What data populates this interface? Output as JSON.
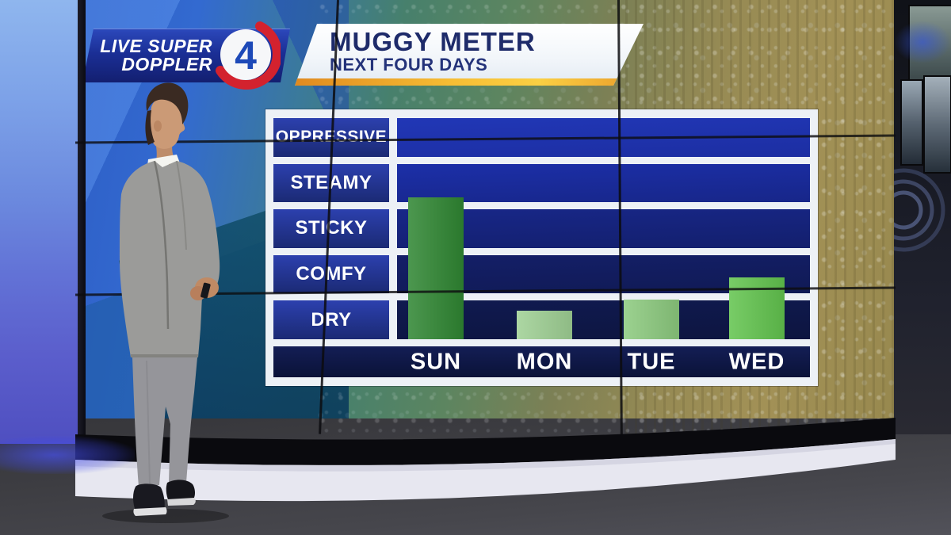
{
  "broadcast": {
    "station_banner": {
      "line1": "LIVE SUPER",
      "line2": "DOPPLER",
      "channel_number": "4"
    },
    "title_banner": {
      "title": "MUGGY METER",
      "subtitle": "NEXT FOUR DAYS"
    }
  },
  "chart_data": {
    "type": "bar",
    "title": "MUGGY METER",
    "subtitle": "NEXT FOUR DAYS",
    "categories": [
      "SUN",
      "MON",
      "TUE",
      "WED"
    ],
    "values": [
      3.2,
      0.65,
      0.9,
      1.4
    ],
    "units": "mugginess level (row units: 1=DRY, 2=COMFY, 3=STICKY, 4=STEAMY, 5=OPPRESSIVE)",
    "y_tick_labels": [
      "OPPRESSIVE",
      "STEAMY",
      "STICKY",
      "COMFY",
      "DRY"
    ],
    "ylim": [
      0,
      5
    ],
    "grid": true,
    "legend_position": "none",
    "bar_colors": [
      "#2f8632",
      "#9fd094",
      "#8cca7e",
      "#62c44e"
    ]
  },
  "scene": {
    "presenter": "weather presenter, gray suit, gold tie, facing chart",
    "setting": "TV studio video wall with condensation (muggy window) backdrop"
  },
  "colors": {
    "plot_blue_top": "#2137b6",
    "plot_blue_bottom": "#0d1540",
    "axis_strip": "#0a1238",
    "banner_navy": "#1b2f96",
    "title_text": "#1e2b6a",
    "accent_orange": "#f6bd34",
    "logo_red": "#d3222e",
    "logo_blue": "#1d49b8"
  }
}
